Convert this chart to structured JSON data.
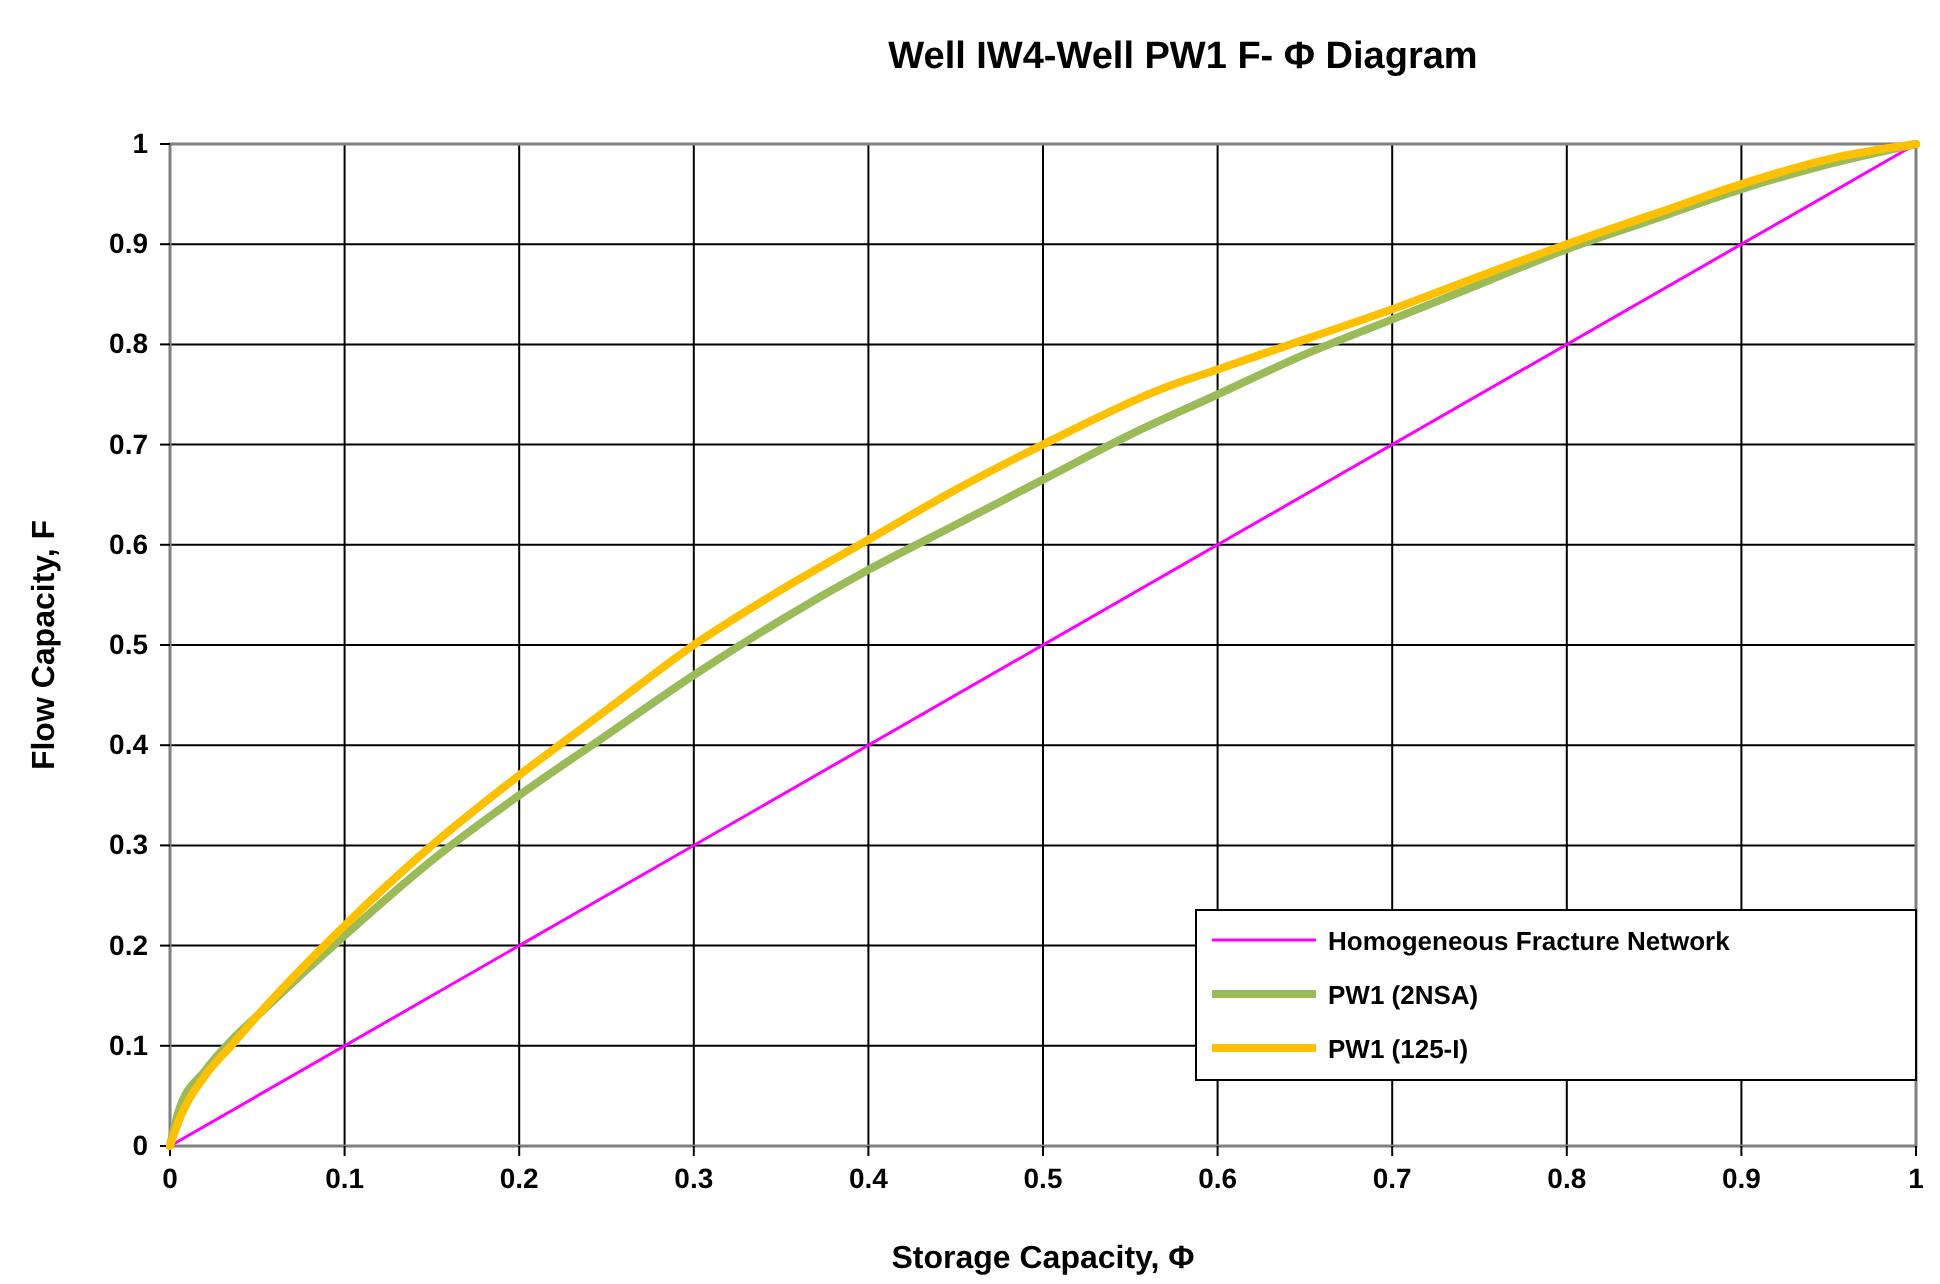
{
  "chart_data": {
    "type": "line",
    "title": "Well IW4-Well PW1 F- Φ Diagram",
    "xlabel": "Storage Capacity, Φ",
    "ylabel": "Flow Capacity, F",
    "xlim": [
      0,
      1
    ],
    "ylim": [
      0,
      1
    ],
    "xticks": [
      0,
      0.1,
      0.2,
      0.3,
      0.4,
      0.5,
      0.6,
      0.7,
      0.8,
      0.9,
      1
    ],
    "yticks": [
      0,
      0.1,
      0.2,
      0.3,
      0.4,
      0.5,
      0.6,
      0.7,
      0.8,
      0.9,
      1
    ],
    "grid": true,
    "legend": "bottom right",
    "marker": "none",
    "line_style": "solid",
    "series": [
      {
        "name": "Homogeneous Fracture Network",
        "color": "#ff00ff",
        "x": [
          0,
          1
        ],
        "values": [
          0,
          1
        ]
      },
      {
        "name": "PW1 (2NSA)",
        "color": "#9bbb59",
        "x": [
          0,
          0.005,
          0.02,
          0.035,
          0.05,
          0.1,
          0.15,
          0.2,
          0.25,
          0.3,
          0.35,
          0.4,
          0.45,
          0.5,
          0.55,
          0.6,
          0.65,
          0.7,
          0.75,
          0.8,
          0.85,
          0.9,
          0.95,
          1
        ],
        "values": [
          0,
          0.035,
          0.075,
          0.105,
          0.13,
          0.21,
          0.285,
          0.35,
          0.41,
          0.47,
          0.525,
          0.575,
          0.62,
          0.665,
          0.71,
          0.75,
          0.79,
          0.825,
          0.86,
          0.895,
          0.925,
          0.955,
          0.98,
          1
        ]
      },
      {
        "name": "PW1 (125-I)",
        "color": "#ffc000",
        "x": [
          0,
          0.005,
          0.02,
          0.035,
          0.05,
          0.1,
          0.15,
          0.2,
          0.25,
          0.3,
          0.35,
          0.4,
          0.45,
          0.5,
          0.57,
          0.6,
          0.65,
          0.7,
          0.75,
          0.8,
          0.85,
          0.9,
          0.95,
          1
        ],
        "values": [
          0,
          0.025,
          0.07,
          0.1,
          0.13,
          0.22,
          0.3,
          0.37,
          0.435,
          0.5,
          0.555,
          0.605,
          0.655,
          0.7,
          0.757,
          0.775,
          0.805,
          0.835,
          0.868,
          0.9,
          0.93,
          0.96,
          0.985,
          1
        ]
      }
    ]
  }
}
